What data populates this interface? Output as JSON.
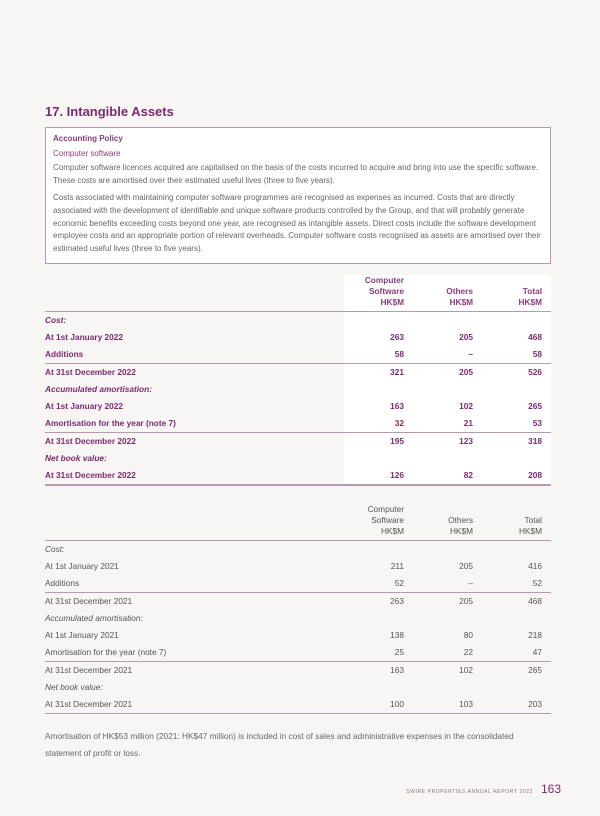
{
  "section_title": "17. Intangible Assets",
  "policy": {
    "heading": "Accounting Policy",
    "subheading": "Computer software",
    "paragraphs": [
      "Computer software licences acquired are capitalised on the basis of the costs incurred to acquire and bring into use the specific software. These costs are amortised over their estimated useful lives (three to five years).",
      "Costs associated with maintaining computer software programmes are recognised as expenses as incurred. Costs that are directly associated with the development of identifiable and unique software products controlled by the Group, and that will probably generate economic benefits exceeding costs beyond one year, are recognised as intangible assets. Direct costs include the software development employee costs and an appropriate portion of relevant overheads. Computer software costs recognised as assets are amortised over their estimated useful lives (three to five years)."
    ]
  },
  "columns": [
    "Computer Software HK$M",
    "Others HK$M",
    "Total HK$M"
  ],
  "column_lines": [
    [
      "Computer",
      "Software",
      "HK$M"
    ],
    [
      "Others",
      "HK$M"
    ],
    [
      "Total",
      "HK$M"
    ]
  ],
  "table_2022": [
    {
      "label": "Cost:",
      "section": true
    },
    {
      "label": "At 1st January 2022",
      "values": [
        "263",
        "205",
        "468"
      ]
    },
    {
      "label": "Additions",
      "values": [
        "58",
        "–",
        "58"
      ]
    },
    {
      "label": "At 31st December 2022",
      "values": [
        "321",
        "205",
        "526"
      ]
    },
    {
      "label": "Accumulated amortisation:",
      "section": true
    },
    {
      "label": "At 1st January 2022",
      "values": [
        "163",
        "102",
        "265"
      ]
    },
    {
      "label": "Amortisation for the year (note 7)",
      "values": [
        "32",
        "21",
        "53"
      ]
    },
    {
      "label": "At 31st December 2022",
      "values": [
        "195",
        "123",
        "318"
      ]
    },
    {
      "label": "Net book value:",
      "section": true
    },
    {
      "label": "At 31st December 2022",
      "values": [
        "126",
        "82",
        "208"
      ]
    }
  ],
  "table_2021": [
    {
      "label": "Cost:",
      "section": true
    },
    {
      "label": "At 1st January 2021",
      "values": [
        "211",
        "205",
        "416"
      ]
    },
    {
      "label": "Additions",
      "values": [
        "52",
        "–",
        "52"
      ]
    },
    {
      "label": "At 31st December 2021",
      "values": [
        "263",
        "205",
        "468"
      ]
    },
    {
      "label": "Accumulated amortisation:",
      "section": true
    },
    {
      "label": "At 1st January 2021",
      "values": [
        "138",
        "80",
        "218"
      ]
    },
    {
      "label": "Amortisation for the year (note 7)",
      "values": [
        "25",
        "22",
        "47"
      ]
    },
    {
      "label": "At 31st December 2021",
      "values": [
        "163",
        "102",
        "265"
      ]
    },
    {
      "label": "Net book value:",
      "section": true
    },
    {
      "label": "At 31st December 2021",
      "values": [
        "100",
        "103",
        "203"
      ]
    }
  ],
  "note": "Amortisation of HK$53 million (2021: HK$47 million) is included in cost of sales and administrative expenses in the consolidated statement of profit or loss.",
  "footer": {
    "report": "SWIRE PROPERTIES ANNUAL REPORT 2022",
    "page_number": "163"
  },
  "colors": {
    "accent": "#7b2a6f",
    "rule": "#b59ab0"
  }
}
